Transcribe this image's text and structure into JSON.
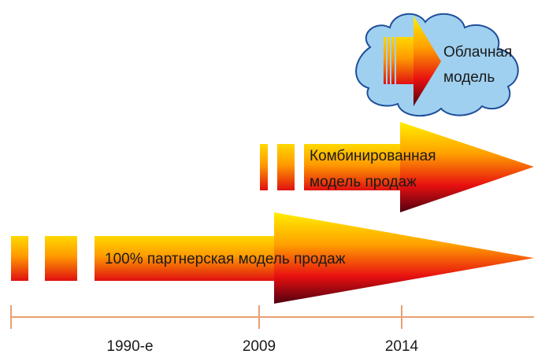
{
  "arrows": [
    {
      "lines": [
        "Облачная",
        "модель"
      ]
    },
    {
      "lines": [
        "Комбинированная",
        "модель продаж"
      ]
    },
    {
      "lines": [
        "100% партнерская модель продаж"
      ]
    }
  ],
  "timeline": {
    "labels": [
      "1990-е",
      "2009",
      "2014"
    ]
  }
}
